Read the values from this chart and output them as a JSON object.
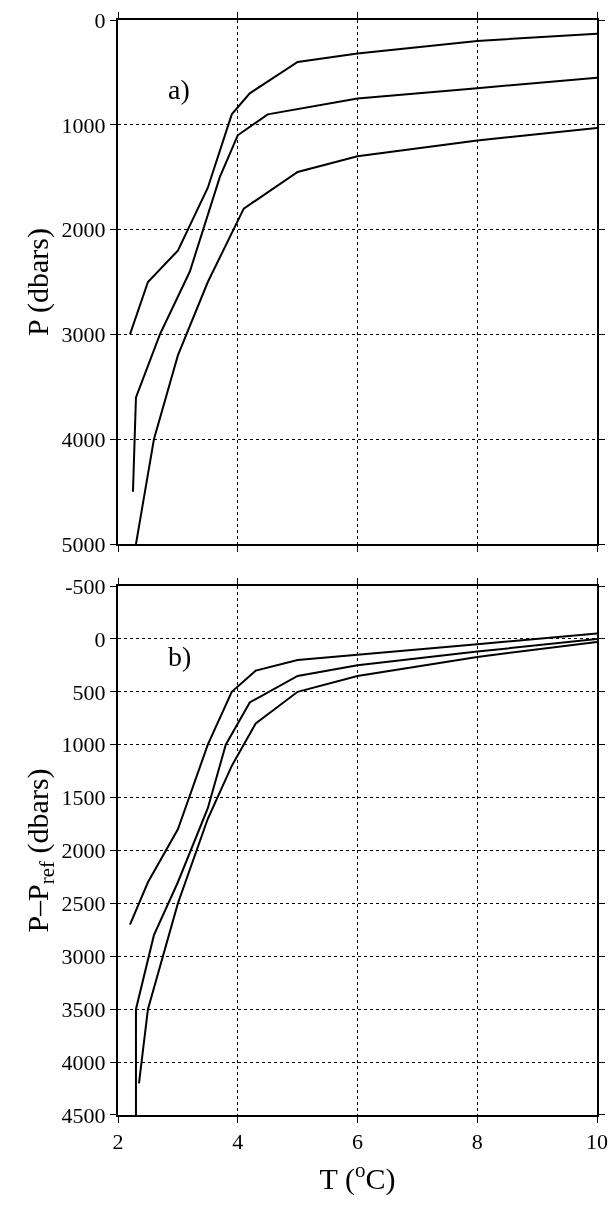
{
  "chart_data": [
    {
      "type": "line",
      "ylabel": "P (dbars)",
      "annotations": [
        "a)"
      ],
      "xlim": [
        2,
        10
      ],
      "xticks": [
        2,
        4,
        6,
        8,
        10
      ],
      "ylim": [
        5000,
        0
      ],
      "yticks": [
        0,
        1000,
        2000,
        3000,
        4000,
        5000
      ],
      "grid": true,
      "tick_labels": "y",
      "line_style": "solid",
      "series": [
        {
          "color": "#000000",
          "x": [
            2.2,
            2.5,
            3.0,
            3.5,
            3.9,
            4.2,
            5.0,
            6.0,
            8.0,
            10.0
          ],
          "values": [
            3000,
            2500,
            2200,
            1600,
            900,
            700,
            400,
            320,
            200,
            130
          ]
        },
        {
          "color": "#000000",
          "x": [
            2.25,
            2.3,
            2.7,
            3.2,
            3.7,
            4.0,
            4.5,
            6.0,
            8.0,
            10.0
          ],
          "values": [
            4500,
            3600,
            3000,
            2400,
            1500,
            1100,
            900,
            750,
            650,
            550
          ]
        },
        {
          "color": "#000000",
          "x": [
            2.3,
            2.6,
            3.0,
            3.5,
            4.1,
            5.0,
            6.0,
            8.0,
            10.0
          ],
          "values": [
            5000,
            4000,
            3200,
            2500,
            1800,
            1450,
            1300,
            1150,
            1030
          ]
        }
      ]
    },
    {
      "type": "line",
      "xlabel": "T ($^{o}$C)",
      "ylabel": "P–P$_{ref}$ (dbars)",
      "annotations": [
        "b)"
      ],
      "xlim": [
        2,
        10
      ],
      "xticks": [
        2,
        4,
        6,
        8,
        10
      ],
      "ylim": [
        4500,
        -500
      ],
      "yticks": [
        -500,
        0,
        500,
        1000,
        1500,
        2000,
        2500,
        3000,
        3500,
        4000,
        4500
      ],
      "grid": true,
      "line_style": "solid",
      "series": [
        {
          "color": "#000000",
          "x": [
            2.2,
            2.5,
            3.0,
            3.5,
            3.9,
            4.3,
            5.0,
            6.0,
            8.0,
            10.0
          ],
          "values": [
            2700,
            2300,
            1800,
            1000,
            500,
            300,
            200,
            150,
            50,
            -50
          ]
        },
        {
          "color": "#000000",
          "x": [
            2.3,
            2.3,
            2.6,
            3.0,
            3.5,
            3.8,
            4.2,
            5.0,
            6.0,
            8.0,
            10.0
          ],
          "values": [
            4500,
            3500,
            2800,
            2300,
            1600,
            1000,
            600,
            350,
            250,
            120,
            0
          ]
        },
        {
          "color": "#000000",
          "x": [
            2.35,
            2.5,
            3.0,
            3.5,
            3.9,
            4.3,
            5.0,
            6.0,
            8.0,
            10.0
          ],
          "values": [
            4200,
            3500,
            2500,
            1700,
            1200,
            800,
            500,
            350,
            170,
            30
          ]
        }
      ]
    }
  ]
}
